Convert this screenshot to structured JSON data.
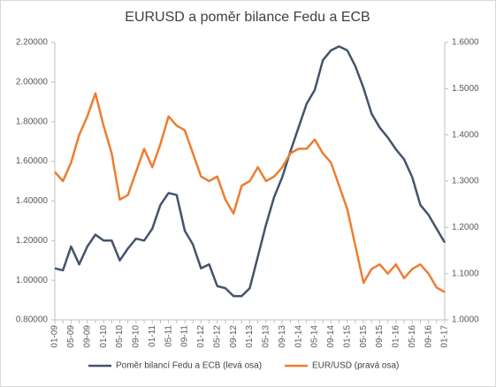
{
  "chart_data": {
    "type": "line",
    "title": "EURUSD a poměr bilance Fedu a ECB",
    "categories": [
      "01-09",
      null,
      "05-09",
      null,
      "09-09",
      null,
      "01-10",
      null,
      "05-10",
      null,
      "09-10",
      null,
      "01-11",
      null,
      "05-11",
      null,
      "09-11",
      null,
      "01-12",
      null,
      "05-12",
      null,
      "09-12",
      null,
      "01-13",
      null,
      "05-13",
      null,
      "09-13",
      null,
      "01-14",
      null,
      "05-14",
      null,
      "09-14",
      null,
      "01-15",
      null,
      "05-15",
      null,
      "09-15",
      null,
      "01-16",
      null,
      "05-16",
      null,
      "09-16",
      null,
      "01-17"
    ],
    "series": [
      {
        "name": "Poměr bilancí Fedu a ECB (levá osa)",
        "color": "#44546a",
        "axis": "y",
        "values": [
          1.06,
          1.05,
          1.17,
          1.08,
          1.17,
          1.23,
          1.2,
          1.2,
          1.1,
          1.16,
          1.21,
          1.2,
          1.26,
          1.38,
          1.44,
          1.43,
          1.25,
          1.18,
          1.06,
          1.08,
          0.97,
          0.96,
          0.92,
          0.92,
          0.96,
          1.12,
          1.28,
          1.42,
          1.52,
          1.65,
          1.77,
          1.89,
          1.96,
          2.11,
          2.16,
          2.18,
          2.16,
          2.08,
          1.97,
          1.84,
          1.77,
          1.72,
          1.66,
          1.61,
          1.52,
          1.38,
          1.33,
          1.26,
          1.19
        ]
      },
      {
        "name": "EUR/USD (pravá osa)",
        "color": "#ed7d31",
        "axis": "y2",
        "values": [
          1.32,
          1.3,
          1.34,
          1.4,
          1.44,
          1.49,
          1.42,
          1.36,
          1.26,
          1.27,
          1.32,
          1.37,
          1.33,
          1.38,
          1.44,
          1.42,
          1.41,
          1.36,
          1.31,
          1.3,
          1.31,
          1.26,
          1.23,
          1.29,
          1.3,
          1.33,
          1.3,
          1.31,
          1.33,
          1.36,
          1.37,
          1.37,
          1.39,
          1.36,
          1.34,
          1.29,
          1.24,
          1.16,
          1.08,
          1.11,
          1.12,
          1.1,
          1.12,
          1.09,
          1.11,
          1.12,
          1.1,
          1.07,
          1.06
        ]
      }
    ],
    "ylim": [
      0.8,
      2.2
    ],
    "yticks": [
      {
        "value": 0.8,
        "label": "0.80000"
      },
      {
        "value": 1.0,
        "label": "1.00000"
      },
      {
        "value": 1.2,
        "label": "1.20000"
      },
      {
        "value": 1.4,
        "label": "1.40000"
      },
      {
        "value": 1.6,
        "label": "1.60000"
      },
      {
        "value": 1.8,
        "label": "1.80000"
      },
      {
        "value": 2.0,
        "label": "2.00000"
      },
      {
        "value": 2.2,
        "label": "2.20000"
      }
    ],
    "y2lim": [
      1.0,
      1.6
    ],
    "y2ticks": [
      {
        "value": 1.0,
        "label": "1.0000"
      },
      {
        "value": 1.1,
        "label": "1.1000"
      },
      {
        "value": 1.2,
        "label": "1.2000"
      },
      {
        "value": 1.3,
        "label": "1.3000"
      },
      {
        "value": 1.4,
        "label": "1.4000"
      },
      {
        "value": 1.5,
        "label": "1.5000"
      },
      {
        "value": 1.6,
        "label": "1.6000"
      }
    ],
    "grid": false,
    "legend": "bottom"
  }
}
